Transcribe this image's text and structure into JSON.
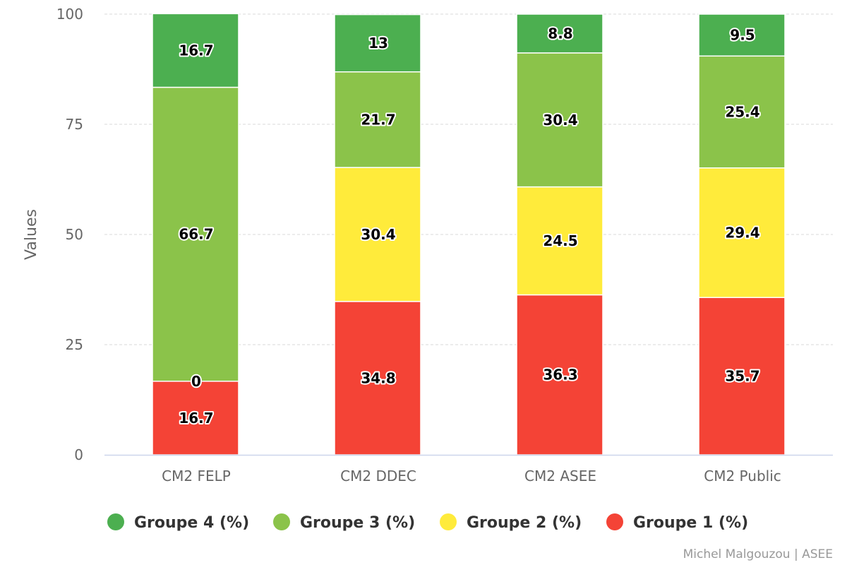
{
  "chart_data": {
    "type": "bar",
    "stacked": true,
    "categories": [
      "CM2 FELP",
      "CM2 DDEC",
      "CM2 ASEE",
      "CM2 Public"
    ],
    "series": [
      {
        "name": "Groupe 1 (%)",
        "color": "#f44336",
        "values": [
          16.7,
          34.8,
          36.3,
          35.7
        ]
      },
      {
        "name": "Groupe 2 (%)",
        "color": "#ffeb3b",
        "values": [
          0,
          30.4,
          24.5,
          29.4
        ]
      },
      {
        "name": "Groupe 3 (%)",
        "color": "#8bc34a",
        "values": [
          66.7,
          21.7,
          30.4,
          25.4
        ]
      },
      {
        "name": "Groupe 4 (%)",
        "color": "#4caf50",
        "values": [
          16.7,
          13,
          8.8,
          9.5
        ]
      }
    ],
    "legend_order": [
      3,
      2,
      1,
      0
    ],
    "ylabel": "Values",
    "xlabel": "",
    "ylim": [
      0,
      100
    ],
    "yticks": [
      0,
      25,
      50,
      75,
      100
    ],
    "grid": true,
    "legend_position": "bottom",
    "credits": "Michel Malgouzou | ASEE"
  }
}
